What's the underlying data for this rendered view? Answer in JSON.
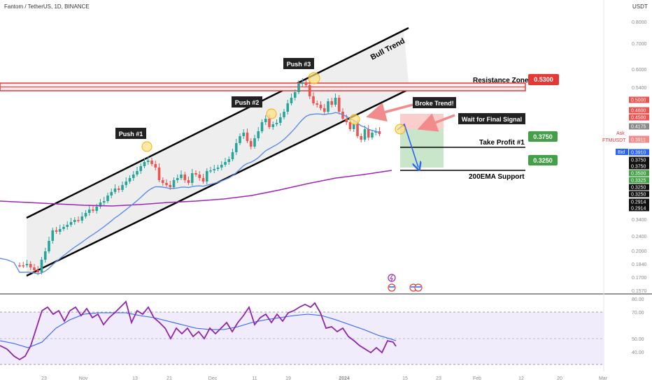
{
  "header": {
    "symbol_text": "Fantom / TetherUS, 1D, BINANCE",
    "currency": "USDT"
  },
  "colors": {
    "up": "#26a69a",
    "down": "#ef5350",
    "ema_fast": "#5b8ee6",
    "ema_200": "#9c27b0",
    "rsi": "#8e24aa",
    "rsi_ma": "#2962ff",
    "resistance": "#e53935",
    "target": "#43a047",
    "annotation_bg": "#222222"
  },
  "price_axis": {
    "ticks": [
      "0.8000",
      "0.7000",
      "0.6000",
      "0.5400",
      "0.5000",
      "0.4500",
      "0.4175",
      "0.3911",
      "0.3750",
      "0.3500",
      "0.3325",
      "0.3250",
      "0.2914",
      "0.2400",
      "0.2000",
      "0.1840",
      "0.1700",
      "0.1570"
    ],
    "tick_values": [
      0.8,
      0.7,
      0.6,
      0.54,
      0.5,
      0.45,
      0.4175,
      0.3911,
      0.375,
      0.35,
      0.3325,
      0.325,
      0.2914,
      0.24,
      0.2,
      0.184,
      0.17,
      0.157
    ],
    "plain_ticks": [
      "0.8000",
      "0.7000",
      "0.6000",
      "0.5400",
      "0.3400",
      "0.2400",
      "0.2000",
      "0.1840",
      "0.1700",
      "0.1570"
    ]
  },
  "price_tags": [
    {
      "text": "0.5000",
      "value": 0.5,
      "bg": "#ef5350"
    },
    {
      "text": "0.4600",
      "value": 0.46,
      "bg": "#ef5350"
    },
    {
      "text": "0.4500",
      "value": 0.45,
      "bg": "#ef5350"
    },
    {
      "text": "0.4175",
      "value": 0.4175,
      "bg": "#8a8a8a"
    },
    {
      "text": "0.3911",
      "value": 0.3911,
      "bg": "#f28b8b"
    },
    {
      "text": "0.3911",
      "value": 0.3911,
      "bg": "#f28b8b"
    },
    {
      "text": "0.3910",
      "value": 0.391,
      "bg": "#2962ff"
    },
    {
      "text": "0.3750",
      "value": 0.375,
      "bg": "#111111"
    },
    {
      "text": "0.3750",
      "value": 0.375,
      "bg": "#111111"
    },
    {
      "text": "0.3500",
      "value": 0.35,
      "bg": "#43a047"
    },
    {
      "text": "0.3325",
      "value": 0.3325,
      "bg": "#43a047"
    },
    {
      "text": "0.3250",
      "value": 0.325,
      "bg": "#111111"
    },
    {
      "text": "0.3250",
      "value": 0.325,
      "bg": "#111111"
    },
    {
      "text": "0.2914",
      "value": 0.2914,
      "bg": "#111111"
    },
    {
      "text": "0.2914",
      "value": 0.2914,
      "bg": "#111111"
    }
  ],
  "tag_labels": {
    "ask": "Ask",
    "ticker": "FTMUSDT",
    "bid": "Bid"
  },
  "time_axis": [
    "23",
    "Nov",
    "13",
    "21",
    "Dec",
    "11",
    "19",
    "2024",
    "15",
    "23",
    "Feb",
    "12",
    "20",
    "Mar"
  ],
  "rsi_axis": [
    "80.00",
    "70.00",
    "50.00",
    "40.00"
  ],
  "annotations": {
    "bull_trend": "Bull Trend",
    "push1": "Push #1",
    "push2": "Push #2",
    "push3": "Push #3",
    "broke_trend": "Broke Trend!",
    "wait_signal": "Wait for Final Signal",
    "resistance_zone": "Resistance Zone",
    "resistance_price": "0.5300",
    "take_profit": "Take Profit #1",
    "tp_price": "0.3750",
    "ema_support": "200EMA Support",
    "ema_price": "0.3250"
  },
  "chart_data": {
    "type": "candlestick",
    "symbol": "FTMUSDT",
    "timeframe": "1D",
    "exchange": "BINANCE",
    "resistance_zone": [
      0.52,
      0.54
    ],
    "take_profit": 0.375,
    "support_200ema": 0.325,
    "rsi_levels": [
      70,
      50,
      30
    ]
  }
}
